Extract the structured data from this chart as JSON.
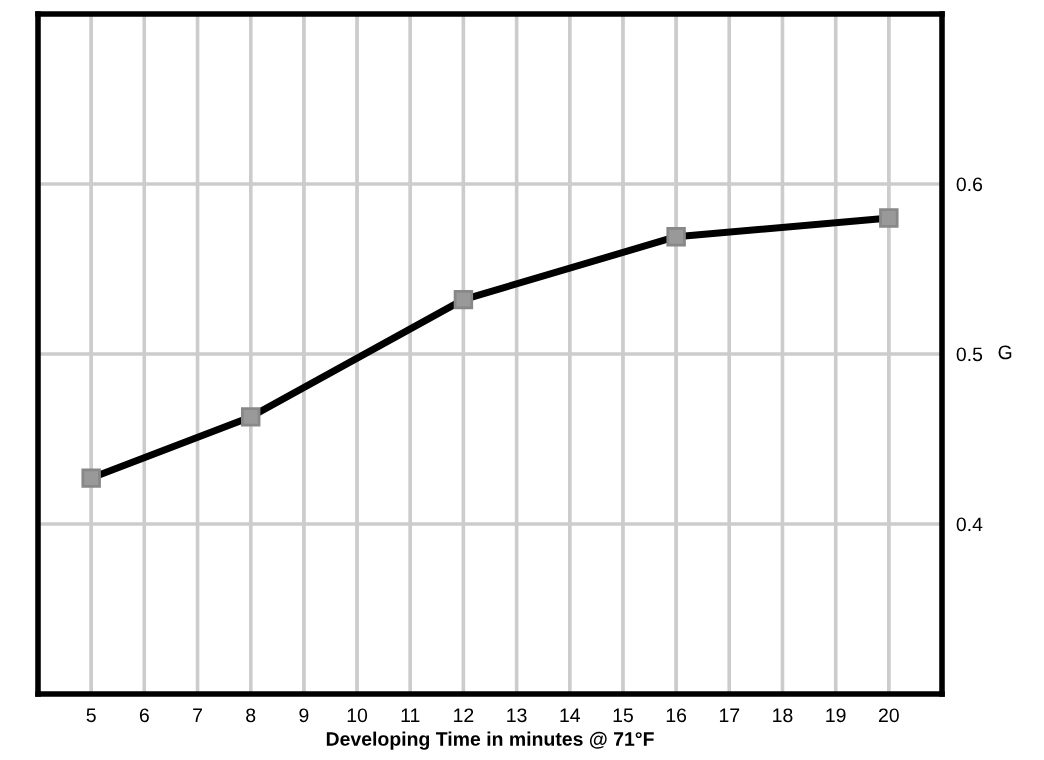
{
  "chart_data": {
    "type": "line",
    "xlabel": "Developing Time in minutes @ 71°F",
    "ylabel": "G",
    "x": [
      5,
      8,
      12,
      16,
      20
    ],
    "series": [
      {
        "color": "#000000",
        "values": [
          0.427,
          0.463,
          0.532,
          0.569,
          0.58
        ]
      }
    ],
    "xlim": [
      4,
      21
    ],
    "xticks": [
      5,
      6,
      7,
      8,
      9,
      10,
      11,
      12,
      13,
      14,
      15,
      16,
      17,
      18,
      19,
      20
    ],
    "ylim": [
      0.3,
      0.7
    ],
    "yticks": [
      0.4,
      0.5,
      0.6
    ],
    "grid": true,
    "marker": "square",
    "line_style": "solid"
  }
}
